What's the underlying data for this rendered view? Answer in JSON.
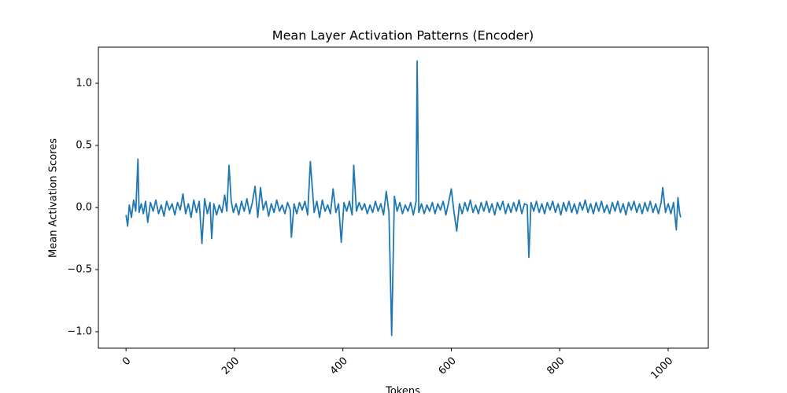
{
  "chart_data": {
    "type": "line",
    "title": "Mean Layer Activation Patterns (Encoder)",
    "x_label": "Tokens",
    "y_label": "Mean Activation Scores",
    "xlim": [
      -51,
      1074
    ],
    "ylim": [
      -1.133,
      1.291
    ],
    "xticks": [
      0,
      200,
      400,
      600,
      800,
      1000
    ],
    "yticks": [
      {
        "value": -1.0,
        "label": "−1.0"
      },
      {
        "value": -0.5,
        "label": "−0.5"
      },
      {
        "value": 0.0,
        "label": "0.0"
      },
      {
        "value": 0.5,
        "label": "0.5"
      },
      {
        "value": 1.0,
        "label": "1.0"
      }
    ],
    "series": [
      {
        "color": "#1f77b4",
        "x": [
          0,
          3,
          6,
          10,
          14,
          18,
          22,
          24,
          28,
          32,
          36,
          40,
          45,
          50,
          55,
          60,
          65,
          70,
          75,
          80,
          85,
          90,
          95,
          100,
          105,
          110,
          115,
          120,
          125,
          130,
          135,
          140,
          145,
          150,
          155,
          158,
          162,
          167,
          172,
          177,
          182,
          186,
          190,
          194,
          198,
          203,
          208,
          213,
          218,
          223,
          228,
          233,
          238,
          243,
          248,
          253,
          258,
          263,
          268,
          273,
          278,
          283,
          288,
          293,
          298,
          303,
          305,
          310,
          315,
          320,
          325,
          330,
          335,
          340,
          343,
          347,
          352,
          357,
          362,
          367,
          372,
          377,
          382,
          387,
          392,
          397,
          402,
          407,
          412,
          417,
          420,
          425,
          430,
          435,
          440,
          445,
          450,
          455,
          460,
          465,
          470,
          475,
          480,
          485,
          490,
          495,
          500,
          505,
          510,
          515,
          520,
          525,
          530,
          535,
          537,
          540,
          545,
          550,
          555,
          560,
          565,
          570,
          575,
          580,
          585,
          590,
          595,
          600,
          605,
          610,
          615,
          620,
          625,
          630,
          635,
          640,
          645,
          650,
          655,
          660,
          665,
          670,
          675,
          680,
          685,
          690,
          695,
          700,
          705,
          710,
          715,
          720,
          725,
          730,
          735,
          740,
          743,
          747,
          752,
          757,
          762,
          767,
          772,
          777,
          782,
          787,
          792,
          797,
          802,
          807,
          812,
          817,
          822,
          827,
          832,
          837,
          842,
          847,
          852,
          857,
          862,
          867,
          872,
          877,
          882,
          887,
          892,
          897,
          902,
          907,
          912,
          917,
          922,
          927,
          932,
          937,
          942,
          947,
          952,
          957,
          962,
          967,
          972,
          977,
          982,
          987,
          990,
          995,
          1000,
          1005,
          1010,
          1015,
          1018,
          1021,
          1023
        ],
        "values": [
          -0.06,
          -0.15,
          0.02,
          -0.08,
          0.06,
          -0.03,
          0.39,
          -0.04,
          0.03,
          -0.05,
          0.05,
          -0.12,
          0.04,
          -0.03,
          0.06,
          -0.05,
          0.02,
          -0.07,
          0.05,
          -0.02,
          0.03,
          -0.06,
          0.04,
          -0.02,
          0.11,
          -0.05,
          0.03,
          -0.08,
          0.06,
          -0.04,
          0.05,
          -0.29,
          0.07,
          -0.05,
          0.04,
          -0.25,
          0.03,
          -0.06,
          0.02,
          -0.04,
          0.1,
          -0.03,
          0.34,
          0.05,
          -0.04,
          0.03,
          -0.06,
          0.05,
          -0.03,
          0.07,
          -0.05,
          0.04,
          0.17,
          -0.08,
          0.16,
          -0.02,
          0.05,
          -0.07,
          0.03,
          -0.04,
          0.06,
          -0.03,
          0.02,
          -0.05,
          0.04,
          -0.02,
          -0.24,
          0.03,
          -0.05,
          0.04,
          -0.02,
          0.05,
          -0.06,
          0.37,
          0.19,
          -0.04,
          0.05,
          -0.08,
          0.06,
          -0.03,
          0.02,
          -0.05,
          0.15,
          -0.04,
          0.03,
          -0.28,
          0.04,
          -0.03,
          0.05,
          -0.06,
          0.34,
          -0.03,
          0.04,
          -0.02,
          0.03,
          -0.05,
          0.02,
          -0.04,
          0.05,
          -0.03,
          0.03,
          -0.06,
          0.13,
          -0.04,
          -1.03,
          0.09,
          -0.03,
          0.04,
          -0.05,
          0.02,
          -0.03,
          0.04,
          -0.06,
          0.05,
          1.18,
          -0.04,
          0.03,
          -0.05,
          0.02,
          -0.03,
          0.04,
          -0.05,
          0.03,
          -0.02,
          0.05,
          -0.06,
          0.04,
          0.15,
          -0.04,
          -0.19,
          0.03,
          -0.05,
          0.04,
          -0.03,
          0.06,
          -0.04,
          0.02,
          -0.05,
          0.04,
          -0.03,
          0.05,
          -0.04,
          0.03,
          -0.06,
          0.04,
          -0.02,
          0.05,
          -0.05,
          0.03,
          -0.04,
          0.04,
          -0.03,
          0.06,
          -0.05,
          0.03,
          0.02,
          -0.4,
          0.04,
          -0.03,
          0.05,
          -0.04,
          0.03,
          -0.05,
          0.04,
          -0.02,
          0.05,
          -0.04,
          0.03,
          -0.06,
          0.04,
          -0.03,
          0.05,
          -0.04,
          0.03,
          -0.05,
          0.04,
          -0.02,
          0.06,
          -0.04,
          0.03,
          -0.05,
          0.04,
          -0.03,
          0.05,
          -0.04,
          0.02,
          -0.05,
          0.04,
          -0.03,
          0.05,
          -0.04,
          0.03,
          -0.06,
          0.04,
          -0.02,
          0.05,
          -0.04,
          0.03,
          -0.05,
          0.04,
          -0.03,
          0.05,
          -0.04,
          0.03,
          -0.05,
          0.04,
          0.16,
          -0.04,
          0.03,
          -0.05,
          0.04,
          -0.18,
          0.08,
          -0.04,
          -0.08
        ]
      }
    ]
  }
}
